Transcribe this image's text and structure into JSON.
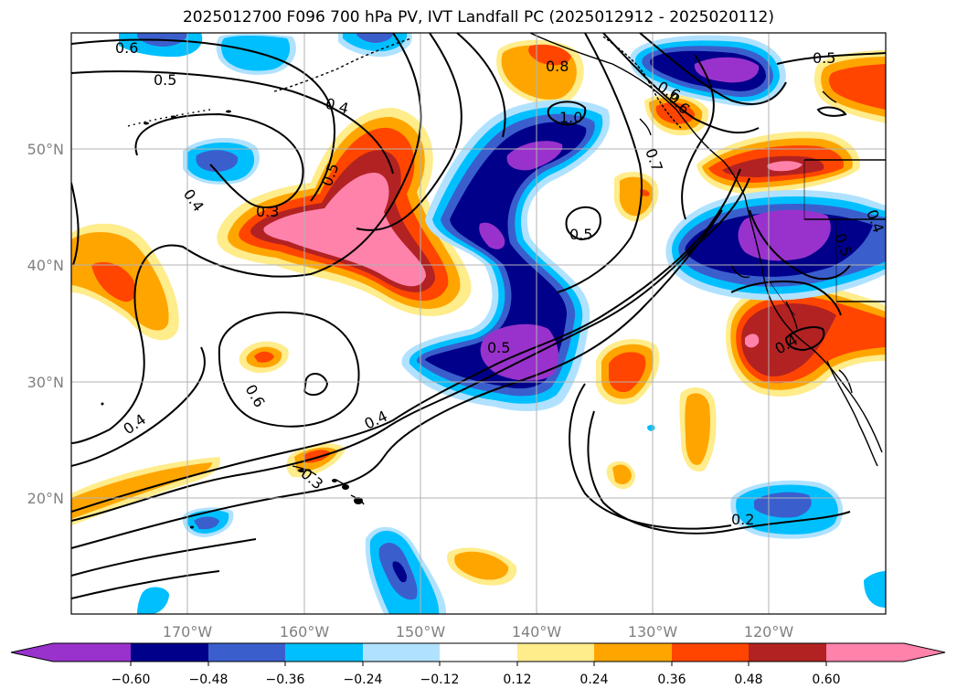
{
  "title": "2025012700 F096 700 hPa PV, IVT Landfall PC (2025012912 - 2025020112)",
  "lon_ticks": [
    "170°W",
    "160°W",
    "150°W",
    "140°W",
    "130°W",
    "120°W"
  ],
  "lat_ticks": [
    "50°N",
    "40°N",
    "30°N",
    "20°N"
  ],
  "contour_labels": [
    "0.6",
    "0.5",
    "0.4",
    "0.8",
    "1.0",
    "0.6",
    "0.7",
    "0.5",
    "0.5",
    "0.4",
    "0.3",
    "0.5",
    "0.5",
    "0.6",
    "0.4",
    "0.4",
    "0.5",
    "0.3",
    "0.2",
    "0.4",
    "0.6",
    "0.5",
    "0.4"
  ],
  "colorbar": {
    "tick_labels": [
      "−0.60",
      "−0.48",
      "−0.36",
      "−0.24",
      "−0.12",
      "0.12",
      "0.24",
      "0.36",
      "0.48",
      "0.60"
    ],
    "colors": [
      "#9932cc",
      "#00008b",
      "#3a5fcd",
      "#00bfff",
      "#b0e2ff",
      "#ffffff",
      "#ffec8b",
      "#ffa500",
      "#ff4500",
      "#b22222",
      "#ff82ab"
    ]
  }
}
